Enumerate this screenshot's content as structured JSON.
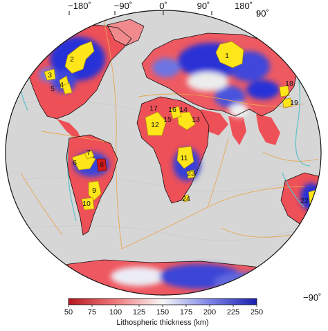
{
  "colors": {
    "thin": "#e0313a",
    "mid": "#f4f4f4",
    "thick": "#1e2bd4",
    "craton": "#ffe61a",
    "craton_highlight": "#d41a1a",
    "coast": "#111111",
    "plate_boundary": "#e8a652",
    "ocean_ridge": "#5bc0c8",
    "ocean": "#d9d9d9"
  },
  "longitude_labels": [
    "−180˚",
    "−90˚",
    "0˚",
    "90˚",
    "180˚"
  ],
  "latitude_labels": {
    "north": "90˚",
    "south": "−90˚"
  },
  "regions": [
    {
      "id": "1",
      "label": "1"
    },
    {
      "id": "2",
      "label": "2"
    },
    {
      "id": "3",
      "label": "3"
    },
    {
      "id": "4",
      "label": "4"
    },
    {
      "id": "5",
      "label": "5"
    },
    {
      "id": "6",
      "label": "6"
    },
    {
      "id": "7",
      "label": "7"
    },
    {
      "id": "8",
      "label": "8",
      "highlight": true
    },
    {
      "id": "9",
      "label": "9"
    },
    {
      "id": "10",
      "label": "10"
    },
    {
      "id": "11",
      "label": "11"
    },
    {
      "id": "12",
      "label": "12"
    },
    {
      "id": "13",
      "label": "13"
    },
    {
      "id": "14",
      "label": "14"
    },
    {
      "id": "15",
      "label": "15"
    },
    {
      "id": "16",
      "label": "16"
    },
    {
      "id": "17",
      "label": "17"
    },
    {
      "id": "18",
      "label": "18"
    },
    {
      "id": "19",
      "label": "19"
    },
    {
      "id": "22",
      "label": "22"
    },
    {
      "id": "23",
      "label": "23"
    },
    {
      "id": "24",
      "label": "24"
    }
  ],
  "colorbar": {
    "ticks": [
      "50",
      "75",
      "100",
      "125",
      "150",
      "175",
      "200",
      "225",
      "250"
    ],
    "min": 50,
    "max": 250,
    "title": "Lithospheric thickness (km)"
  }
}
